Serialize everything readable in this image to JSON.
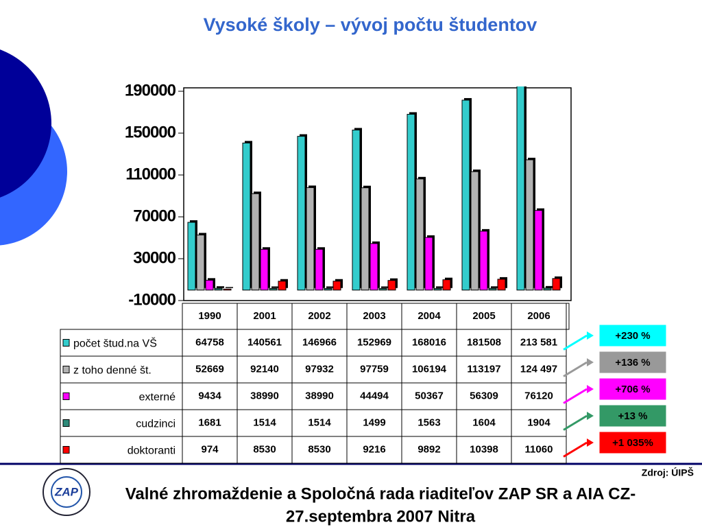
{
  "chart_data": {
    "type": "bar",
    "title": "Vysoké školy – vývoj počtu študentov",
    "categories": [
      "1990",
      "2001",
      "2002",
      "2003",
      "2004",
      "2005",
      "2006"
    ],
    "series": [
      {
        "name": "počet štud.na VŠ",
        "color": "#33cccc",
        "values": [
          64758,
          140561,
          146966,
          152969,
          168016,
          181508,
          213581
        ],
        "value_labels": [
          "64758",
          "140561",
          "146966",
          "152969",
          "168016",
          "181508",
          "213 581"
        ]
      },
      {
        "name": "z toho denné št.",
        "color": "#b2b2b2",
        "values": [
          52669,
          92140,
          97932,
          97759,
          106194,
          113197,
          124497
        ],
        "value_labels": [
          "52669",
          "92140",
          "97932",
          "97759",
          "106194",
          "113197",
          "124 497"
        ]
      },
      {
        "name": "externé",
        "color": "#ff00ff",
        "values": [
          9434,
          38990,
          38990,
          44494,
          50367,
          56309,
          76120
        ]
      },
      {
        "name": "cudzinci",
        "color": "#2e8b7a",
        "values": [
          1681,
          1514,
          1514,
          1499,
          1563,
          1604,
          1904
        ]
      },
      {
        "name": "doktoranti",
        "color": "#ff0000",
        "values": [
          974,
          8530,
          8530,
          9216,
          9892,
          10398,
          11060
        ]
      }
    ],
    "ylim": [
      -10000,
      190000
    ],
    "yticks": [
      -10000,
      30000,
      70000,
      110000,
      150000,
      190000
    ],
    "annotations": [
      {
        "text": "+230 %",
        "color": "#00ffff"
      },
      {
        "text": "+136 %",
        "color": "#999999"
      },
      {
        "text": "+706 %",
        "color": "#ff00ff"
      },
      {
        "text": "+13 %",
        "color": "#339966"
      },
      {
        "text": "+1 035%",
        "color": "#ff0000"
      }
    ],
    "source": "Zdroj: ÚIPŠ"
  },
  "footer": {
    "logo": "ZAP",
    "line1": "Valné zhromaždenie a Spoločná rada riaditeľov ZAP SR a AIA CZ-",
    "line2": "27.septembra 2007 Nitra"
  }
}
